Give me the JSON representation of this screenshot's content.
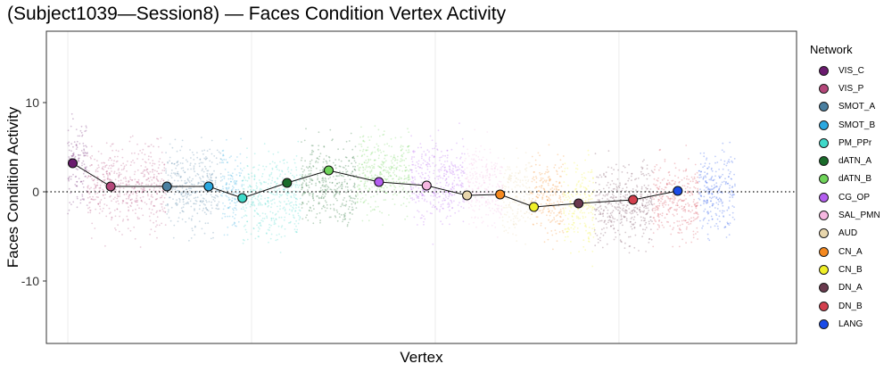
{
  "chart_data": {
    "type": "scatter",
    "title": "(Subject1039—Session8) — Faces Condition Vertex Activity",
    "xlabel": "Vertex",
    "ylabel": "Faces Condition Activity",
    "ylim": [
      -17,
      18
    ],
    "yticks": [
      -10,
      0,
      10
    ],
    "y_reference_line": 0,
    "legend_title": "Network",
    "legend_position": "right",
    "series": [
      {
        "name": "VIS_C",
        "color": "#6a1b6e",
        "mean": 3.2,
        "x_range": [
          0,
          320
        ]
      },
      {
        "name": "VIS_P",
        "color": "#b5477a",
        "mean": 0.6,
        "x_range": [
          320,
          1600
        ]
      },
      {
        "name": "SMOT_A",
        "color": "#4a7fa0",
        "mean": 0.6,
        "x_range": [
          1600,
          2500
        ]
      },
      {
        "name": "SMOT_B",
        "color": "#2ba8e0",
        "mean": 0.6,
        "x_range": [
          2500,
          2850
        ]
      },
      {
        "name": "PM_PPr",
        "color": "#3fd9c9",
        "mean": -0.7,
        "x_range": [
          2850,
          3800
        ]
      },
      {
        "name": "dATN_A",
        "color": "#1a6b2a",
        "mean": 1.0,
        "x_range": [
          3800,
          4720
        ]
      },
      {
        "name": "dATN_B",
        "color": "#6fd45a",
        "mean": 2.4,
        "x_range": [
          4720,
          5600
        ]
      },
      {
        "name": "CG_OP",
        "color": "#b45ef0",
        "mean": 1.1,
        "x_range": [
          5600,
          6480
        ]
      },
      {
        "name": "SAL_PMN",
        "color": "#f6b7e1",
        "mean": 0.7,
        "x_range": [
          6480,
          7100
        ]
      },
      {
        "name": "AUD",
        "color": "#e8d6ac",
        "mean": -0.4,
        "x_range": [
          7100,
          7560
        ]
      },
      {
        "name": "CN_A",
        "color": "#f5891f",
        "mean": -0.3,
        "x_range": [
          7560,
          8100
        ]
      },
      {
        "name": "CN_B",
        "color": "#f0ef28",
        "mean": -1.7,
        "x_range": [
          8100,
          8600
        ]
      },
      {
        "name": "DN_A",
        "color": "#6a3a4e",
        "mean": -1.3,
        "x_range": [
          8600,
          9550
        ]
      },
      {
        "name": "DN_B",
        "color": "#d3404e",
        "mean": -0.9,
        "x_range": [
          9550,
          10300
        ]
      },
      {
        "name": "LANG",
        "color": "#1a4be8",
        "mean": 0.1,
        "x_range": [
          10300,
          10900
        ]
      }
    ],
    "mean_points": [
      {
        "network": "VIS_C",
        "x": 80,
        "y": 3.2
      },
      {
        "network": "VIS_P",
        "x": 700,
        "y": 0.6
      },
      {
        "network": "SMOT_A",
        "x": 1620,
        "y": 0.6
      },
      {
        "network": "SMOT_B",
        "x": 2300,
        "y": 0.6
      },
      {
        "network": "PM_PPr",
        "x": 2850,
        "y": -0.7
      },
      {
        "network": "dATN_A",
        "x": 3580,
        "y": 1.0
      },
      {
        "network": "dATN_B",
        "x": 4260,
        "y": 2.4
      },
      {
        "network": "CG_OP",
        "x": 5080,
        "y": 1.1
      },
      {
        "network": "SAL_PMN",
        "x": 5860,
        "y": 0.7
      },
      {
        "network": "AUD",
        "x": 6520,
        "y": -0.4
      },
      {
        "network": "CN_A",
        "x": 7060,
        "y": -0.3
      },
      {
        "network": "CN_B",
        "x": 7610,
        "y": -1.7
      },
      {
        "network": "DN_A",
        "x": 8340,
        "y": -1.3
      },
      {
        "network": "DN_B",
        "x": 9230,
        "y": -0.9
      },
      {
        "network": "LANG",
        "x": 9960,
        "y": 0.1
      }
    ]
  }
}
